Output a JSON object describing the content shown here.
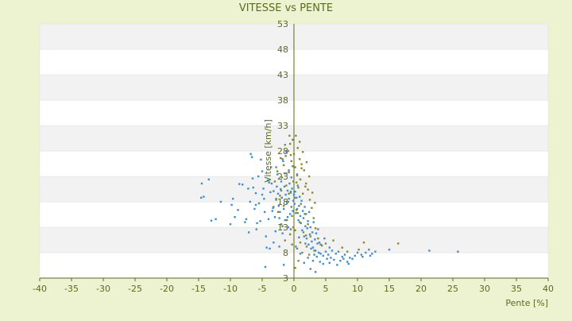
{
  "chart_data": {
    "type": "scatter",
    "title": "VITESSE vs PENTE",
    "xlabel": "Pente [%]",
    "ylabel": "Vitesse [km/h]",
    "xlim": [
      -40,
      40
    ],
    "ylim": [
      3,
      53
    ],
    "xticks": [
      -40,
      -35,
      -30,
      -25,
      -20,
      -15,
      -10,
      -5,
      0,
      5,
      10,
      15,
      20,
      25,
      30,
      35,
      40
    ],
    "yticks": [
      3,
      8,
      13,
      18,
      23,
      28,
      33,
      38,
      43,
      48,
      53
    ],
    "grid": "horizontal alternating bands",
    "colors": {
      "background": "#edf2d0",
      "plot_band_light": "#ffffff",
      "plot_band_dark": "#f2f2f2",
      "axis_text": "#5a6b1e",
      "series_descent": "#3c8fd6",
      "series_climb": "#8a8a2a"
    },
    "series": [
      {
        "color": "#3c8fd6",
        "points": [
          [
            -14.5,
            21.6
          ],
          [
            -14.6,
            18.8
          ],
          [
            -14.2,
            19.0
          ],
          [
            -13.4,
            22.4
          ],
          [
            -13.0,
            14.3
          ],
          [
            -12.3,
            14.6
          ],
          [
            -11.5,
            18.0
          ],
          [
            -10.0,
            13.6
          ],
          [
            -9.8,
            17.4
          ],
          [
            -9.6,
            18.6
          ],
          [
            -9.3,
            15.0
          ],
          [
            -8.6,
            21.5
          ],
          [
            -8.1,
            21.4
          ],
          [
            -7.7,
            14.0
          ],
          [
            -7.5,
            14.6
          ],
          [
            -7.1,
            12.0
          ],
          [
            -6.9,
            18.0
          ],
          [
            -6.8,
            27.4
          ],
          [
            -6.6,
            26.8
          ],
          [
            -6.5,
            22.6
          ],
          [
            -6.4,
            20.8
          ],
          [
            -6.2,
            16.6
          ],
          [
            -6.0,
            19.7
          ],
          [
            -5.9,
            12.6
          ],
          [
            -5.8,
            13.8
          ],
          [
            -5.6,
            23.0
          ],
          [
            -5.5,
            17.7
          ],
          [
            -5.3,
            14.2
          ],
          [
            -5.2,
            26.3
          ],
          [
            -5.0,
            24.0
          ],
          [
            -4.8,
            20.6
          ],
          [
            -4.7,
            18.6
          ],
          [
            -4.6,
            16.0
          ],
          [
            -4.4,
            11.2
          ],
          [
            -4.3,
            9.0
          ],
          [
            -4.1,
            22.2
          ],
          [
            -4.0,
            14.6
          ],
          [
            -3.8,
            8.8
          ],
          [
            -3.7,
            19.9
          ],
          [
            -3.6,
            24.8
          ],
          [
            -3.5,
            21.6
          ],
          [
            -3.3,
            16.8
          ],
          [
            -3.2,
            20.1
          ],
          [
            -3.0,
            15.0
          ],
          [
            -2.9,
            12.2
          ],
          [
            -2.8,
            18.4
          ],
          [
            -2.7,
            21.0
          ],
          [
            -2.6,
            23.4
          ],
          [
            -2.5,
            19.6
          ],
          [
            -2.4,
            17.2
          ],
          [
            -2.3,
            14.8
          ],
          [
            -2.2,
            16.0
          ],
          [
            -2.1,
            20.5
          ],
          [
            -2.0,
            22.0
          ],
          [
            -1.9,
            18.8
          ],
          [
            -1.8,
            11.8
          ],
          [
            -1.7,
            26.0
          ],
          [
            -1.6,
            16.6
          ],
          [
            -1.5,
            21.0
          ],
          [
            -1.4,
            14.4
          ],
          [
            -1.3,
            19.4
          ],
          [
            -1.2,
            23.6
          ],
          [
            -1.1,
            17.8
          ],
          [
            -1.0,
            20.2
          ],
          [
            -0.9,
            13.0
          ],
          [
            -0.8,
            18.6
          ],
          [
            -0.7,
            21.6
          ],
          [
            -0.6,
            15.6
          ],
          [
            -0.5,
            19.8
          ],
          [
            -0.4,
            17.0
          ],
          [
            -0.3,
            20.6
          ],
          [
            -0.2,
            16.2
          ],
          [
            -0.1,
            18.2
          ],
          [
            0.0,
            19.4
          ],
          [
            0.1,
            17.6
          ],
          [
            0.2,
            20.0
          ],
          [
            0.3,
            15.8
          ],
          [
            0.4,
            18.8
          ],
          [
            0.5,
            16.6
          ],
          [
            0.6,
            21.2
          ],
          [
            0.7,
            14.4
          ],
          [
            0.8,
            17.2
          ],
          [
            0.9,
            19.0
          ],
          [
            1.0,
            15.2
          ],
          [
            1.1,
            13.8
          ],
          [
            1.2,
            18.2
          ],
          [
            1.3,
            12.4
          ],
          [
            1.4,
            16.2
          ],
          [
            1.5,
            14.8
          ],
          [
            1.6,
            11.2
          ],
          [
            1.7,
            17.0
          ],
          [
            1.8,
            13.2
          ],
          [
            1.9,
            15.6
          ],
          [
            2.0,
            10.8
          ],
          [
            2.1,
            12.8
          ],
          [
            2.2,
            14.2
          ],
          [
            2.3,
            9.6
          ],
          [
            2.4,
            16.0
          ],
          [
            2.5,
            11.6
          ],
          [
            2.6,
            13.0
          ],
          [
            2.7,
            8.8
          ],
          [
            2.8,
            10.2
          ],
          [
            2.9,
            12.0
          ],
          [
            3.0,
            9.0
          ],
          [
            3.1,
            14.0
          ],
          [
            3.2,
            7.6
          ],
          [
            3.3,
            10.6
          ],
          [
            3.4,
            8.4
          ],
          [
            3.5,
            11.8
          ],
          [
            3.6,
            7.2
          ],
          [
            3.7,
            9.8
          ],
          [
            3.8,
            12.6
          ],
          [
            3.9,
            8.0
          ],
          [
            4.0,
            10.0
          ],
          [
            4.2,
            7.8
          ],
          [
            4.4,
            9.4
          ],
          [
            4.6,
            7.4
          ],
          [
            4.8,
            10.8
          ],
          [
            5.0,
            8.2
          ],
          [
            5.2,
            6.8
          ],
          [
            5.4,
            7.6
          ],
          [
            5.6,
            9.0
          ],
          [
            5.8,
            7.0
          ],
          [
            6.0,
            8.4
          ],
          [
            6.3,
            6.6
          ],
          [
            6.6,
            7.8
          ],
          [
            7.0,
            8.2
          ],
          [
            7.3,
            6.4
          ],
          [
            7.6,
            7.2
          ],
          [
            8.0,
            7.6
          ],
          [
            8.4,
            6.2
          ],
          [
            8.8,
            7.0
          ],
          [
            9.2,
            6.8
          ],
          [
            10.0,
            8.0
          ],
          [
            10.6,
            7.6
          ],
          [
            11.3,
            8.0
          ],
          [
            11.8,
            8.6
          ],
          [
            12.3,
            7.8
          ],
          [
            12.8,
            8.2
          ],
          [
            15.0,
            8.6
          ],
          [
            21.3,
            8.4
          ],
          [
            25.8,
            8.2
          ],
          [
            -0.5,
            12.6
          ],
          [
            0.3,
            9.2
          ],
          [
            1.0,
            7.8
          ],
          [
            1.6,
            6.0
          ],
          [
            2.2,
            7.0
          ],
          [
            2.6,
            4.8
          ],
          [
            3.4,
            4.2
          ],
          [
            4.1,
            6.2
          ],
          [
            -2.3,
            9.2
          ],
          [
            -1.6,
            5.6
          ],
          [
            -4.5,
            5.2
          ],
          [
            -3.2,
            10.0
          ],
          [
            -0.8,
            24.2
          ],
          [
            -1.8,
            26.4
          ],
          [
            -1.2,
            27.8
          ],
          [
            -0.4,
            22.8
          ],
          [
            0.5,
            23.4
          ],
          [
            -2.8,
            24.8
          ],
          [
            -3.9,
            21.8
          ],
          [
            5.6,
            6.0
          ],
          [
            6.8,
            5.6
          ],
          [
            7.8,
            6.8
          ],
          [
            8.6,
            5.8
          ],
          [
            9.6,
            7.4
          ],
          [
            10.8,
            7.2
          ],
          [
            12.0,
            7.4
          ],
          [
            4.6,
            5.8
          ],
          [
            3.0,
            6.4
          ],
          [
            1.8,
            9.8
          ],
          [
            0.8,
            11.0
          ],
          [
            -1.0,
            15.0
          ],
          [
            -2.0,
            13.6
          ],
          [
            -3.4,
            16.2
          ],
          [
            -5.0,
            19.4
          ],
          [
            -6.0,
            17.4
          ],
          [
            -7.2,
            20.6
          ],
          [
            -8.8,
            16.4
          ]
        ]
      },
      {
        "color": "#8a8a2a",
        "points": [
          [
            -0.2,
            30.2
          ],
          [
            0.3,
            31.0
          ],
          [
            -0.6,
            29.4
          ],
          [
            0.6,
            28.6
          ],
          [
            -0.9,
            28.0
          ],
          [
            0.0,
            27.4
          ],
          [
            -1.3,
            27.0
          ],
          [
            0.9,
            26.4
          ],
          [
            -0.4,
            26.0
          ],
          [
            1.2,
            25.4
          ],
          [
            -1.6,
            25.2
          ],
          [
            0.2,
            24.8
          ],
          [
            1.6,
            24.2
          ],
          [
            -0.8,
            23.8
          ],
          [
            0.5,
            23.2
          ],
          [
            -1.9,
            22.8
          ],
          [
            1.0,
            22.4
          ],
          [
            -0.1,
            22.0
          ],
          [
            1.9,
            21.6
          ],
          [
            -1.2,
            21.2
          ],
          [
            0.7,
            20.8
          ],
          [
            2.2,
            20.4
          ],
          [
            -0.5,
            20.0
          ],
          [
            1.4,
            19.6
          ],
          [
            -2.2,
            19.2
          ],
          [
            0.1,
            18.8
          ],
          [
            2.5,
            18.4
          ],
          [
            -0.9,
            18.0
          ],
          [
            1.1,
            17.6
          ],
          [
            -1.6,
            17.2
          ],
          [
            2.8,
            16.8
          ],
          [
            0.4,
            16.4
          ],
          [
            -2.5,
            16.0
          ],
          [
            1.7,
            15.6
          ],
          [
            -0.3,
            15.2
          ],
          [
            3.1,
            14.8
          ],
          [
            -1.1,
            14.4
          ],
          [
            0.9,
            14.0
          ],
          [
            2.2,
            13.6
          ],
          [
            -1.8,
            13.2
          ],
          [
            3.4,
            12.8
          ],
          [
            0.2,
            12.4
          ],
          [
            1.5,
            12.0
          ],
          [
            -0.6,
            11.6
          ],
          [
            2.6,
            11.2
          ],
          [
            3.8,
            10.8
          ],
          [
            -1.4,
            10.4
          ],
          [
            1.0,
            10.0
          ],
          [
            4.2,
            9.6
          ],
          [
            2.0,
            9.2
          ],
          [
            0.5,
            8.8
          ],
          [
            3.2,
            8.4
          ],
          [
            1.3,
            8.0
          ],
          [
            5.0,
            9.8
          ],
          [
            6.2,
            10.4
          ],
          [
            7.6,
            9.0
          ],
          [
            8.4,
            8.2
          ],
          [
            10.2,
            8.6
          ],
          [
            11.0,
            10.0
          ],
          [
            16.4,
            9.8
          ],
          [
            -0.7,
            31.0
          ],
          [
            0.9,
            29.8
          ],
          [
            -1.4,
            29.2
          ],
          [
            1.4,
            27.8
          ],
          [
            -2.1,
            26.6
          ],
          [
            2.0,
            25.8
          ],
          [
            -0.2,
            25.0
          ],
          [
            -2.6,
            24.0
          ],
          [
            2.4,
            23.0
          ],
          [
            -3.0,
            22.0
          ],
          [
            1.8,
            21.0
          ],
          [
            -2.0,
            20.2
          ],
          [
            2.9,
            19.8
          ],
          [
            -2.8,
            18.6
          ],
          [
            3.3,
            17.8
          ],
          [
            -3.2,
            17.0
          ],
          [
            0.6,
            15.8
          ],
          [
            -0.1,
            13.0
          ],
          [
            1.9,
            11.4
          ],
          [
            -0.3,
            9.6
          ],
          [
            2.4,
            7.6
          ],
          [
            0.7,
            6.4
          ],
          [
            0.2,
            5.0
          ],
          [
            -0.8,
            19.6
          ],
          [
            0.4,
            21.8
          ],
          [
            -1.5,
            23.6
          ],
          [
            1.2,
            24.6
          ],
          [
            -0.5,
            27.2
          ]
        ]
      }
    ]
  }
}
